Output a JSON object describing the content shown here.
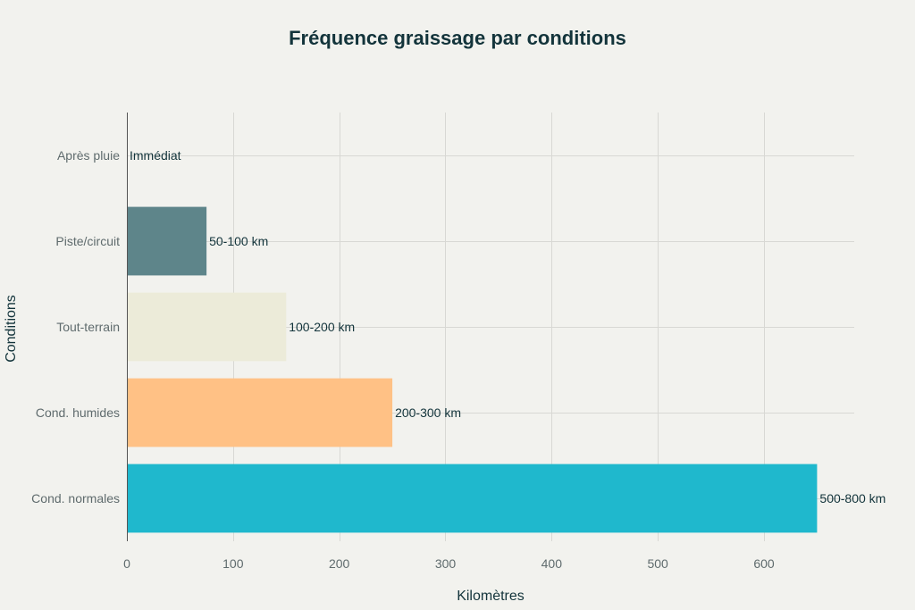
{
  "chart_data": {
    "type": "bar",
    "orientation": "horizontal",
    "title": "Fréquence graissage par conditions",
    "xlabel": "Kilomètres",
    "ylabel": "Conditions",
    "xlim": [
      0,
      685
    ],
    "xticks": [
      0,
      100,
      200,
      300,
      400,
      500,
      600
    ],
    "grid": true,
    "categories": [
      "Après pluie",
      "Piste/circuit",
      "Tout-terrain",
      "Cond. humides",
      "Cond. normales"
    ],
    "values": [
      0,
      75,
      150,
      250,
      650
    ],
    "data_labels": [
      "Immédiat",
      "50-100 km",
      "100-200 km",
      "200-300 km",
      "500-800 km"
    ],
    "colors": [
      "#13343b",
      "#5e858a",
      "#ecebd9",
      "#ffc185",
      "#1fb8cd"
    ]
  }
}
